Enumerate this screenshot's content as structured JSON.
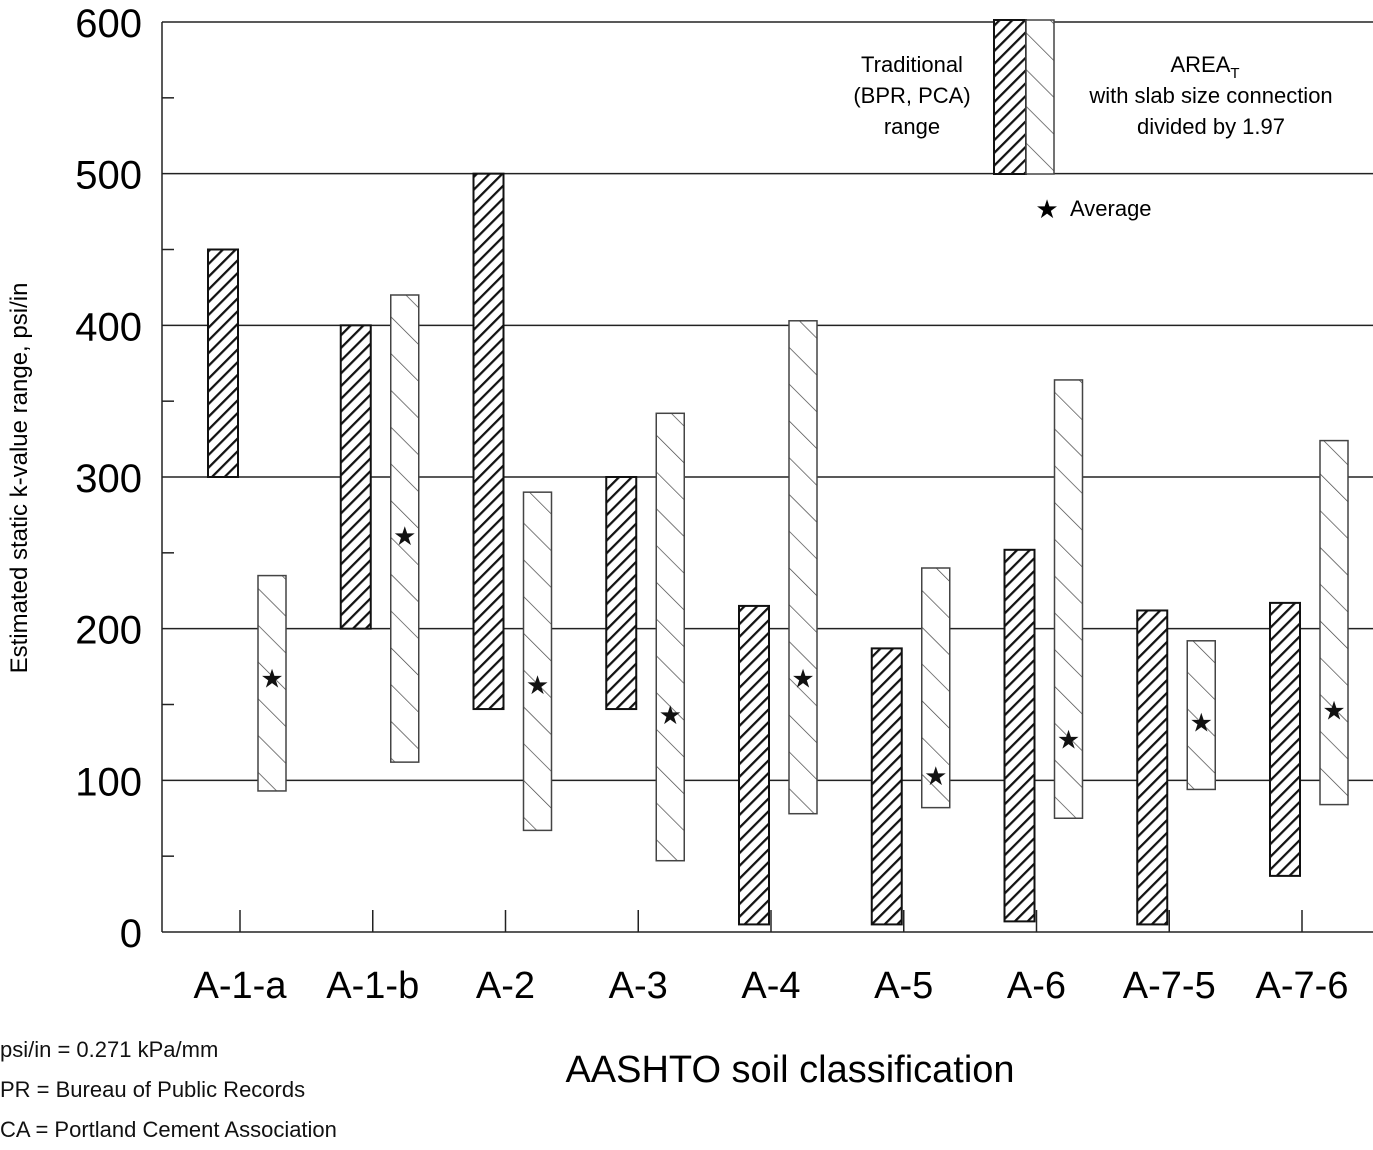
{
  "chart_data": {
    "type": "bar",
    "title": "",
    "xlabel": "AASHTO soil classification",
    "ylabel": "Estimated static k-value range, psi/in",
    "ylim": [
      0,
      600
    ],
    "yticks": [
      "0",
      "100",
      "200",
      "300",
      "400",
      "500",
      "600"
    ],
    "grid": true,
    "categories": [
      "A-1-a",
      "A-1-b",
      "A-2",
      "A-3",
      "A-4",
      "A-5",
      "A-6",
      "A-7-5",
      "A-7-6"
    ],
    "series": [
      {
        "name": "Traditional (BPR, PCA) range",
        "low": [
          300,
          200,
          147,
          147,
          5,
          5,
          7,
          5,
          37
        ],
        "high": [
          450,
          400,
          500,
          300,
          215,
          187,
          252,
          212,
          217
        ],
        "color": "#111111"
      },
      {
        "name": "AREAT with slab size connection divided by 1.97",
        "low": [
          93,
          112,
          67,
          47,
          78,
          82,
          75,
          94,
          84
        ],
        "high": [
          235,
          420,
          290,
          342,
          403,
          240,
          364,
          192,
          324
        ],
        "average": [
          167,
          261,
          163,
          143,
          167,
          103,
          127,
          138,
          146
        ],
        "color": "#444444"
      }
    ],
    "legend": {
      "traditional_lines": [
        "Traditional",
        "(BPR, PCA)",
        "range"
      ],
      "area_title": "AREA",
      "area_subscript": "T",
      "area_lines": [
        "with slab size connection",
        "divided by 1.97"
      ],
      "average_label": "Average",
      "placement": "top-right"
    },
    "notes": [
      "psi/in = 0.271 kPa/mm",
      "PR = Bureau of Public Records",
      "CA = Portland Cement Association"
    ]
  }
}
